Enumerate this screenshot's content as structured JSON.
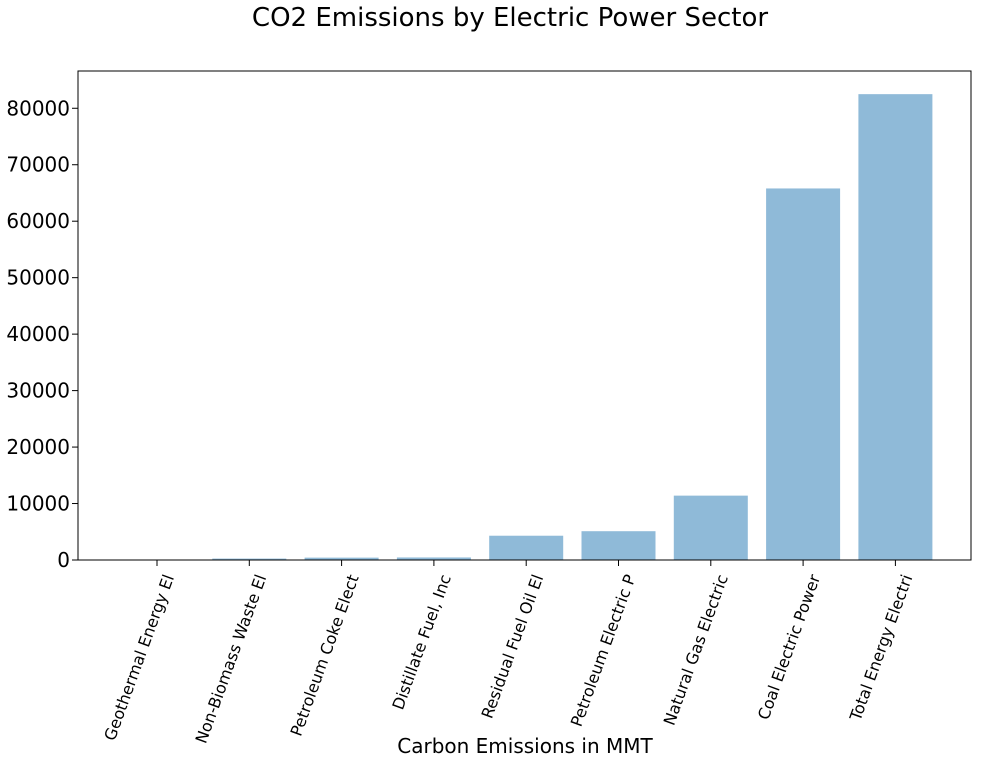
{
  "chart_data": {
    "type": "bar",
    "title": "CO2 Emissions by Electric Power Sector",
    "xlabel": "Carbon Emissions in MMT",
    "ylabel": "",
    "categories": [
      "Geothermal Energy El",
      "Non-Biomass Waste El",
      "Petroleum Coke Elect",
      "Distillate Fuel, Inc",
      "Residual Fuel Oil El",
      "Petroleum Electric P",
      "Natural Gas Electric",
      "Coal Electric Power",
      "Total Energy Electri"
    ],
    "values": [
      40,
      250,
      420,
      450,
      4300,
      5100,
      11400,
      65800,
      82500
    ],
    "ylim": [
      0,
      86600
    ],
    "yticks": [
      0,
      10000,
      20000,
      30000,
      40000,
      50000,
      60000,
      70000,
      80000
    ],
    "grid": false,
    "bar_color": "#8fbad8"
  }
}
